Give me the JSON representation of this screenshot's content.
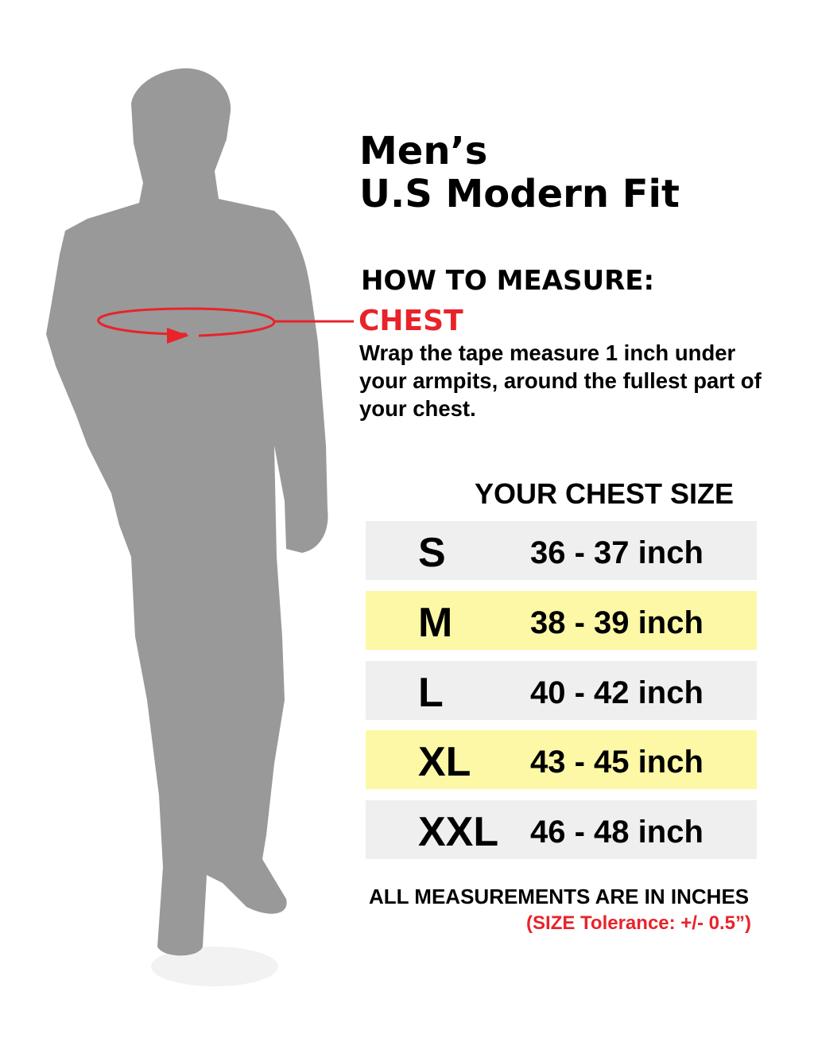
{
  "title": {
    "line1": "Men’s",
    "line2": "U.S Modern Fit"
  },
  "how_to_measure": {
    "heading": "HOW TO MEASURE:",
    "part": "CHEST",
    "instructions": "Wrap the tape measure 1 inch under your armpits, around the fullest part of your chest."
  },
  "size_table": {
    "heading": "YOUR CHEST SIZE",
    "rows": [
      {
        "size": "S",
        "range": "36 - 37 inch",
        "highlight": false
      },
      {
        "size": "M",
        "range": "38 - 39 inch",
        "highlight": true
      },
      {
        "size": "L",
        "range": "40 - 42 inch",
        "highlight": false
      },
      {
        "size": "XL",
        "range": "43 - 45 inch",
        "highlight": true
      },
      {
        "size": "XXL",
        "range": "46 - 48 inch",
        "highlight": false
      }
    ]
  },
  "footer": {
    "note": "ALL MEASUREMENTS ARE IN INCHES",
    "tolerance": "(SIZE Tolerance: +/- 0.5”)"
  },
  "colors": {
    "accent": "#e8232a",
    "row_plain": "#efefef",
    "row_highlight": "#fcf8a6",
    "silhouette": "#999999"
  }
}
